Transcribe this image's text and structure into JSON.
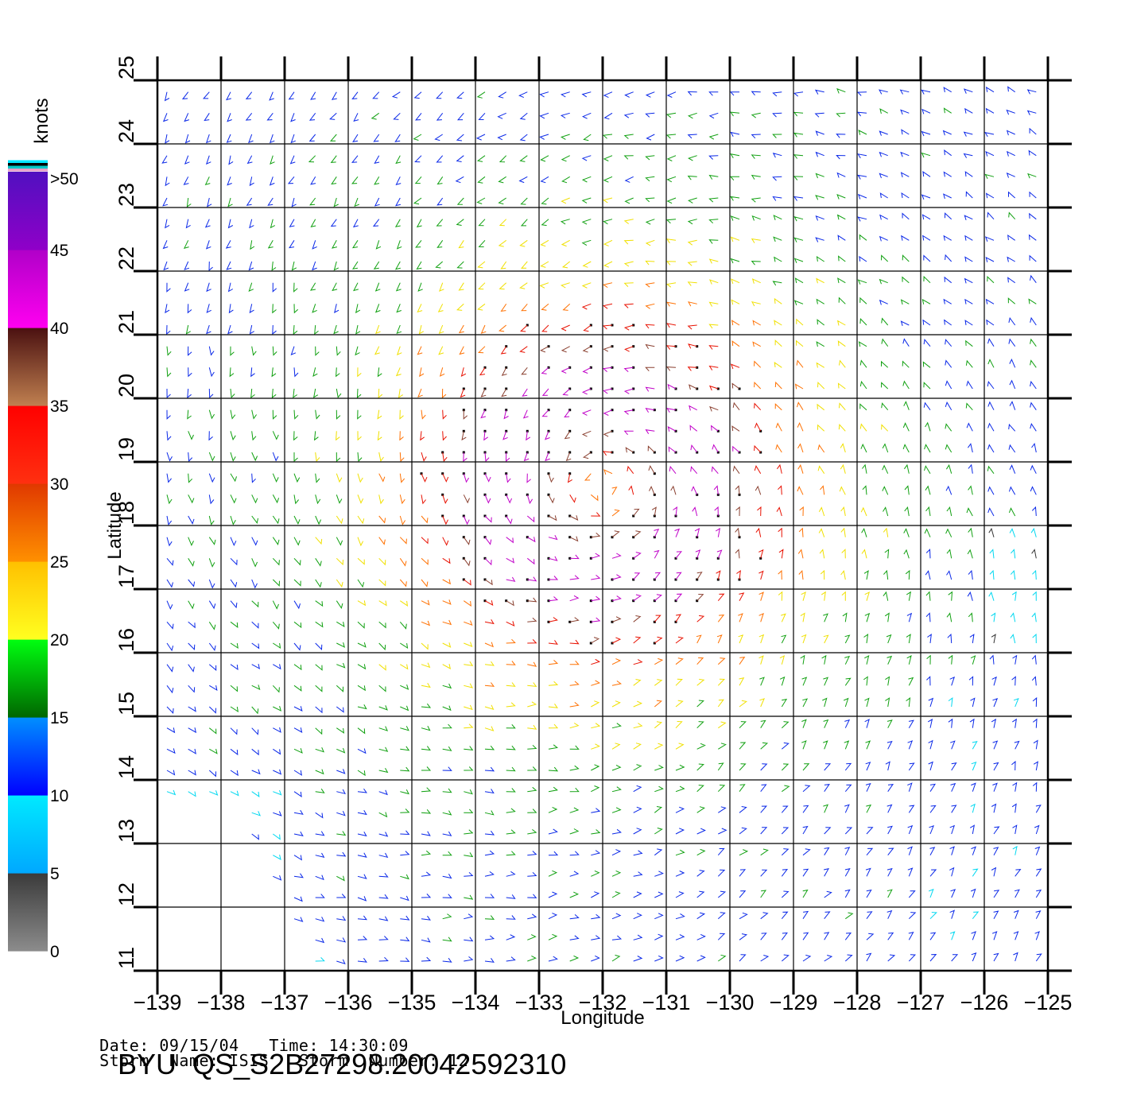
{
  "meta": {
    "date_label": "Date:",
    "date": "09/15/04",
    "time_label": "Time:",
    "time": "14:30:09",
    "storm_name_label": "Storm  Name:",
    "storm_name": "ISIS",
    "storm_number_label": "Storm  Number:",
    "storm_number": "12",
    "product": "BYU  QS_S2B27298.20042592310"
  },
  "colorbar": {
    "unit": "knots",
    "labels": [
      ">50",
      "45",
      "40",
      "35",
      "30",
      "25",
      "20",
      "15",
      "10",
      "5",
      "0"
    ],
    "bands": [
      {
        "from": 0,
        "to": 5,
        "top": "#3a3a3a",
        "bottom": "#8c8c8c"
      },
      {
        "from": 5,
        "to": 10,
        "top": "#00eaff",
        "bottom": "#00a8ff"
      },
      {
        "from": 10,
        "to": 15,
        "top": "#0090ff",
        "bottom": "#0000ff"
      },
      {
        "from": 15,
        "to": 20,
        "top": "#00ff10",
        "bottom": "#006600"
      },
      {
        "from": 20,
        "to": 25,
        "top": "#ffc000",
        "bottom": "#ffff20"
      },
      {
        "from": 25,
        "to": 30,
        "top": "#e03800",
        "bottom": "#ff9000"
      },
      {
        "from": 30,
        "to": 35,
        "top": "#ff0000",
        "bottom": "#ff3010"
      },
      {
        "from": 35,
        "to": 40,
        "top": "#4a1010",
        "bottom": "#c08050"
      },
      {
        "from": 40,
        "to": 45,
        "top": "#b000c8",
        "bottom": "#ff00f0"
      },
      {
        "from": 45,
        "to": 50,
        "top": "#5010c0",
        "bottom": "#9000c8"
      }
    ],
    "top_stripes": [
      "#e6a0c8",
      "#00c8c8",
      "#000000",
      "#00e6ff"
    ]
  },
  "chart_data": {
    "type": "wind_vector_map",
    "xlabel": "Longitude",
    "ylabel": "Latitude",
    "xlim": [
      -139,
      -125
    ],
    "ylim": [
      11,
      25
    ],
    "xticks": [
      -139,
      -138,
      -137,
      -136,
      -135,
      -134,
      -133,
      -132,
      -131,
      -130,
      -129,
      -128,
      -127,
      -126,
      -125
    ],
    "yticks": [
      11,
      12,
      13,
      14,
      15,
      16,
      17,
      18,
      19,
      20,
      21,
      22,
      23,
      24,
      25
    ],
    "grid": true,
    "units": "knots",
    "storm_center": {
      "lon": -132,
      "lat": 18.6
    },
    "speed_range_knots": [
      0,
      50
    ]
  }
}
